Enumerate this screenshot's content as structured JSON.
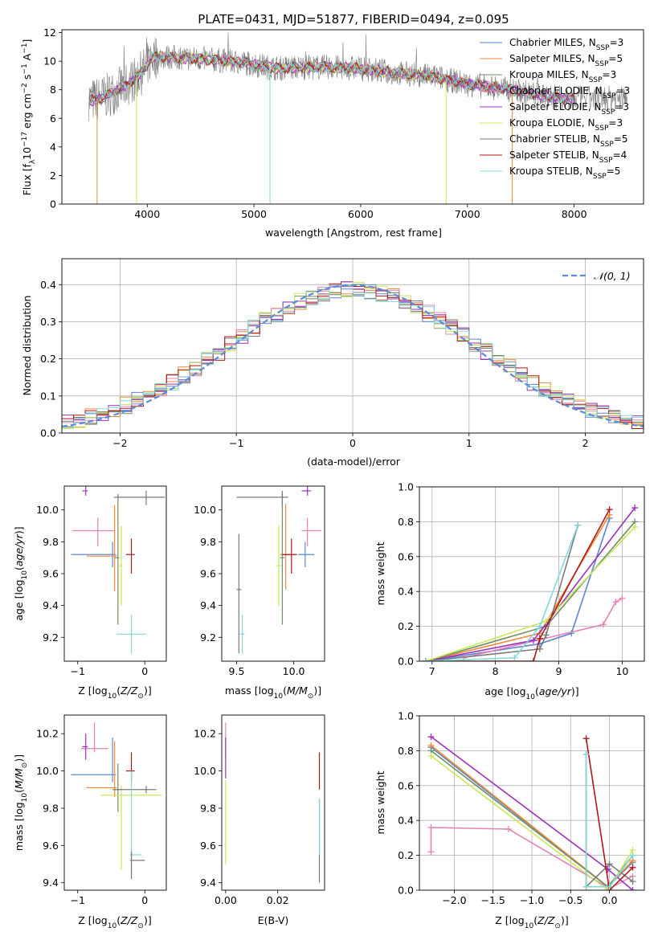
{
  "figure_title": "PLATE=0431, MJD=51877, FIBERID=0494, z=0.095",
  "colors": {
    "Chabrier MILES": "#5b86d4",
    "Salpeter MILES": "#f08a30",
    "Kroupa MILES": "#6f8e68",
    "Chabrier ELODIE": "#e583b4",
    "Salpeter ELODIE": "#9b30c0",
    "Kroupa ELODIE": "#c8e85a",
    "Chabrier STELIB": "#7a7a7a",
    "Salpeter STELIB": "#b01818",
    "Kroupa STELIB": "#80d8d8",
    "gaussian": "#5b8bd6"
  },
  "chart_data": [
    {
      "type": "line",
      "xlabel": "wavelength [Angstrom, rest frame]",
      "ylabel": "Flux [f_λ 10^-17 erg cm^-2 s^-1 A^-1]",
      "xlim": [
        3200,
        8650
      ],
      "ylim": [
        0,
        12.2
      ],
      "xticks": [
        4000,
        5000,
        6000,
        7000,
        8000
      ],
      "yticks": [
        0,
        2,
        4,
        6,
        8,
        10,
        12
      ],
      "grid": false,
      "legend_position": "right",
      "legend": [
        {
          "series": "Chabrier MILES",
          "label": "Chabrier MILES, N",
          "sub": "SSP",
          "tail": "=3"
        },
        {
          "series": "Salpeter MILES",
          "label": "Salpeter MILES, N",
          "sub": "SSP",
          "tail": "=5"
        },
        {
          "series": "Kroupa MILES",
          "label": "Kroupa MILES, N",
          "sub": "SSP",
          "tail": "=3"
        },
        {
          "series": "Chabrier ELODIE",
          "label": "Chabrier ELODIE, N",
          "sub": "SSP",
          "tail": "=3"
        },
        {
          "series": "Salpeter ELODIE",
          "label": "Salpeter ELODIE, N",
          "sub": "SSP",
          "tail": "=3"
        },
        {
          "series": "Kroupa ELODIE",
          "label": "Kroupa ELODIE, N",
          "sub": "SSP",
          "tail": "=3"
        },
        {
          "series": "Chabrier STELIB",
          "label": "Chabrier STELIB, N",
          "sub": "SSP",
          "tail": "=5"
        },
        {
          "series": "Salpeter STELIB",
          "label": "Salpeter STELIB, N",
          "sub": "SSP",
          "tail": "=4"
        },
        {
          "series": "Kroupa STELIB",
          "label": "Kroupa STELIB, N",
          "sub": "SSP",
          "tail": "=5"
        }
      ],
      "continuum": [
        [
          3460,
          7.2
        ],
        [
          3600,
          7.5
        ],
        [
          3800,
          8.3
        ],
        [
          3950,
          9.2
        ],
        [
          4050,
          10.3
        ],
        [
          4200,
          10.3
        ],
        [
          4400,
          10.2
        ],
        [
          4600,
          10.1
        ],
        [
          4900,
          9.9
        ],
        [
          5200,
          9.5
        ],
        [
          5600,
          9.6
        ],
        [
          6000,
          9.5
        ],
        [
          6300,
          9.2
        ],
        [
          6700,
          8.9
        ],
        [
          7000,
          8.4
        ],
        [
          7400,
          8.0
        ],
        [
          7700,
          7.6
        ],
        [
          7900,
          7.4
        ]
      ],
      "data_range": [
        3450,
        8500
      ]
    },
    {
      "type": "area",
      "xlabel": "(data-model)/error",
      "ylabel": "Normed distribution",
      "xlim": [
        -2.5,
        2.5
      ],
      "ylim": [
        0,
        0.47
      ],
      "xticks": [
        -2,
        -1,
        0,
        1,
        2
      ],
      "yticks": [
        0.0,
        0.1,
        0.2,
        0.3,
        0.4
      ],
      "grid": true,
      "bin_width": 0.1,
      "gaussian_label": "𝒩(0, 1)",
      "legend_position": "top-right"
    },
    {
      "type": "scatter",
      "xlabel": "Z [log10(Z/Z⊙)]",
      "ylabel": "age  [log10(age/yr)]",
      "xlim": [
        -1.2,
        0.32
      ],
      "ylim": [
        9.05,
        10.15
      ],
      "xticks": [
        -1,
        0
      ],
      "yticks": [
        9.2,
        9.4,
        9.6,
        9.8,
        10.0
      ],
      "points": [
        {
          "series": "Chabrier MILES",
          "x": -0.48,
          "xerr": [
            0.62,
            0.05
          ],
          "y": 9.72,
          "yerr": [
            0.08,
            0.08
          ]
        },
        {
          "series": "Salpeter MILES",
          "x": -0.45,
          "xerr": [
            0.42,
            0.03
          ],
          "y": 9.71,
          "yerr": [
            0.22,
            0.32
          ]
        },
        {
          "series": "Kroupa MILES",
          "x": -0.4,
          "xerr": [
            0.05,
            0.02
          ],
          "y": 9.7,
          "yerr": [
            0.42,
            0.4
          ]
        },
        {
          "series": "Chabrier ELODIE",
          "x": -0.7,
          "xerr": [
            0.38,
            0.25
          ],
          "y": 9.87,
          "yerr": [
            0.1,
            0.08
          ]
        },
        {
          "series": "Salpeter ELODIE",
          "x": -0.88,
          "xerr": [
            0.05,
            0.03
          ],
          "y": 10.12,
          "yerr": [
            0.03,
            0.03
          ]
        },
        {
          "series": "Kroupa ELODIE",
          "x": -0.35,
          "xerr": [
            0.05,
            0.02
          ],
          "y": 9.65,
          "yerr": [
            0.25,
            0.25
          ]
        },
        {
          "series": "Chabrier STELIB",
          "x": 0.02,
          "xerr": [
            0.48,
            0.28
          ],
          "y": 10.08,
          "yerr": [
            0.05,
            0.04
          ]
        },
        {
          "series": "Salpeter STELIB",
          "x": -0.2,
          "xerr": [
            0.08,
            0.05
          ],
          "y": 9.72,
          "yerr": [
            0.12,
            0.1
          ]
        },
        {
          "series": "Kroupa STELIB",
          "x": -0.2,
          "xerr": [
            0.22,
            0.22
          ],
          "y": 9.22,
          "yerr": [
            0.12,
            0.12
          ]
        }
      ]
    },
    {
      "type": "scatter",
      "xlabel": "mass [log10(M/M⊙)]",
      "ylabel": "",
      "xlim": [
        9.37,
        10.27
      ],
      "ylim": [
        9.05,
        10.15
      ],
      "xticks": [
        9.5,
        10.0
      ],
      "yticks": [
        9.2,
        9.4,
        9.6,
        9.8,
        10.0
      ],
      "points": [
        {
          "series": "Chabrier MILES",
          "x": 10.1,
          "xerr": [
            0.06,
            0.08
          ],
          "y": 9.72,
          "yerr": [
            0.08,
            0.08
          ]
        },
        {
          "series": "Salpeter MILES",
          "x": 9.93,
          "xerr": [
            0.05,
            0.05
          ],
          "y": 9.72,
          "yerr": [
            0.22,
            0.32
          ]
        },
        {
          "series": "Kroupa MILES",
          "x": 9.9,
          "xerr": [
            0.02,
            0.02
          ],
          "y": 9.7,
          "yerr": [
            0.42,
            0.4
          ]
        },
        {
          "series": "Chabrier ELODIE",
          "x": 10.12,
          "xerr": [
            0.05,
            0.12
          ],
          "y": 9.87,
          "yerr": [
            0.1,
            0.08
          ]
        },
        {
          "series": "Salpeter ELODIE",
          "x": 10.12,
          "xerr": [
            0.05,
            0.03
          ],
          "y": 10.12,
          "yerr": [
            0.03,
            0.03
          ]
        },
        {
          "series": "Kroupa ELODIE",
          "x": 9.87,
          "xerr": [
            0.02,
            0.02
          ],
          "y": 9.65,
          "yerr": [
            0.25,
            0.25
          ]
        },
        {
          "series": "Chabrier STELIB",
          "x": 9.9,
          "xerr": [
            0.4,
            0.05
          ],
          "y": 10.08,
          "yerr": [
            0.05,
            0.04
          ]
        },
        {
          "series": "Salpeter STELIB",
          "x": 9.98,
          "xerr": [
            0.08,
            0.05
          ],
          "y": 9.72,
          "yerr": [
            0.12,
            0.1
          ]
        },
        {
          "series": "Kroupa STELIB",
          "x": 9.55,
          "xerr": [
            0.02,
            0.02
          ],
          "y": 9.22,
          "yerr": [
            0.12,
            0.12
          ]
        },
        {
          "series": "Chabrier STELIB",
          "x": 9.52,
          "xerr": [
            0.02,
            0.02
          ],
          "y": 9.5,
          "yerr": [
            0.4,
            0.35
          ]
        }
      ]
    },
    {
      "type": "line",
      "xlabel": "age  [log10(age/yr)]",
      "ylabel": "mass weight",
      "xlim": [
        6.8,
        10.35
      ],
      "ylim": [
        0,
        1.0
      ],
      "xticks": [
        7,
        8,
        9,
        10
      ],
      "yticks": [
        0.0,
        0.2,
        0.4,
        0.6,
        0.8,
        1.0
      ],
      "grid": true,
      "series": [
        {
          "series": "Chabrier MILES",
          "x": [
            6.9,
            8.7,
            9.2,
            9.8
          ],
          "y": [
            0.0,
            0.1,
            0.16,
            0.82
          ]
        },
        {
          "series": "Salpeter MILES",
          "x": [
            6.9,
            8.7,
            9.8
          ],
          "y": [
            0.0,
            0.16,
            0.84
          ]
        },
        {
          "series": "Kroupa MILES",
          "x": [
            6.9,
            8.8,
            10.2
          ],
          "y": [
            0.0,
            0.2,
            0.8
          ]
        },
        {
          "series": "Chabrier ELODIE",
          "x": [
            7.5,
            9.7,
            9.9,
            10.0
          ],
          "y": [
            0.02,
            0.21,
            0.34,
            0.36
          ]
        },
        {
          "series": "Salpeter ELODIE",
          "x": [
            6.9,
            8.6,
            10.2
          ],
          "y": [
            0.0,
            0.12,
            0.88
          ]
        },
        {
          "series": "Kroupa ELODIE",
          "x": [
            6.9,
            8.8,
            10.2
          ],
          "y": [
            0.0,
            0.23,
            0.77
          ]
        },
        {
          "series": "Chabrier STELIB",
          "x": [
            6.9,
            8.7,
            8.8,
            9.3
          ],
          "y": [
            0.0,
            0.07,
            0.15,
            0.78
          ]
        },
        {
          "series": "Salpeter STELIB",
          "x": [
            6.9,
            8.6,
            8.7,
            9.8
          ],
          "y": [
            0.0,
            0.0,
            0.13,
            0.87
          ]
        },
        {
          "series": "Kroupa STELIB",
          "x": [
            6.9,
            8.3,
            8.7,
            9.3
          ],
          "y": [
            0.0,
            0.02,
            0.2,
            0.78
          ]
        }
      ]
    },
    {
      "type": "scatter",
      "xlabel": "Z [log10(Z/Z⊙)]",
      "ylabel": "mass [log10(M/M⊙)]",
      "xlim": [
        -1.2,
        0.32
      ],
      "ylim": [
        9.36,
        10.3
      ],
      "xticks": [
        -1,
        0
      ],
      "yticks": [
        9.4,
        9.6,
        9.8,
        10.0,
        10.2
      ],
      "points": [
        {
          "series": "Chabrier MILES",
          "x": -0.48,
          "xerr": [
            0.62,
            0.05
          ],
          "y": 9.98,
          "yerr": [
            0.04,
            0.2
          ]
        },
        {
          "series": "Salpeter MILES",
          "x": -0.45,
          "xerr": [
            0.42,
            0.03
          ],
          "y": 9.91,
          "yerr": [
            0.05,
            0.25
          ]
        },
        {
          "series": "Kroupa MILES",
          "x": -0.4,
          "xerr": [
            0.05,
            0.02
          ],
          "y": 9.9,
          "yerr": [
            0.12,
            0.14
          ]
        },
        {
          "series": "Chabrier ELODIE",
          "x": -0.75,
          "xerr": [
            0.2,
            0.2
          ],
          "y": 10.12,
          "yerr": [
            0.02,
            0.14
          ]
        },
        {
          "series": "Salpeter ELODIE",
          "x": -0.88,
          "xerr": [
            0.05,
            0.03
          ],
          "y": 10.13,
          "yerr": [
            0.07,
            0.07
          ]
        },
        {
          "series": "Kroupa ELODIE",
          "x": -0.35,
          "xerr": [
            0.3,
            0.6
          ],
          "y": 9.87,
          "yerr": [
            0.4,
            0.05
          ]
        },
        {
          "series": "Chabrier STELIB",
          "x": 0.02,
          "xerr": [
            0.5,
            0.15
          ],
          "y": 9.9,
          "yerr": [
            0.02,
            0.02
          ]
        },
        {
          "series": "Salpeter STELIB",
          "x": -0.2,
          "xerr": [
            0.08,
            0.05
          ],
          "y": 10.0,
          "yerr": [
            0.06,
            0.1
          ]
        },
        {
          "series": "Kroupa STELIB",
          "x": -0.2,
          "xerr": [
            0.02,
            0.15
          ],
          "y": 9.55,
          "yerr": [
            0.1,
            0.45
          ]
        },
        {
          "series": "Chabrier STELIB",
          "x": -0.2,
          "xerr": [
            0.02,
            0.2
          ],
          "y": 9.52,
          "yerr": [
            0.1,
            0.05
          ]
        }
      ]
    },
    {
      "type": "scatter",
      "xlabel": "E(B-V)",
      "ylabel": "",
      "xlim": [
        -0.0015,
        0.038
      ],
      "ylim": [
        9.36,
        10.3
      ],
      "xticks": [
        0.0,
        0.02
      ],
      "yticks": [
        9.4,
        9.6,
        9.8,
        10.0,
        10.2
      ],
      "points": [
        {
          "series": "Chabrier ELODIE",
          "x": 0.0,
          "y": 10.12,
          "yerr": [
            0.05,
            0.14
          ]
        },
        {
          "series": "Salpeter ELODIE",
          "x": 0.0,
          "y": 10.1,
          "yerr": [
            0.14,
            0.08
          ]
        },
        {
          "series": "Kroupa ELODIE",
          "x": 0.0,
          "y": 9.85,
          "yerr": [
            0.35,
            0.1
          ]
        },
        {
          "series": "Chabrier STELIB",
          "x": 0.036,
          "y": 9.8,
          "yerr": [
            0.4,
            0.05
          ]
        },
        {
          "series": "Salpeter STELIB",
          "x": 0.036,
          "y": 10.0,
          "yerr": [
            0.1,
            0.1
          ]
        },
        {
          "series": "Kroupa STELIB",
          "x": 0.036,
          "y": 9.7,
          "yerr": [
            0.15,
            0.15
          ]
        }
      ]
    },
    {
      "type": "line",
      "xlabel": "Z [log10(Z/Z⊙)]",
      "ylabel": "mass weight",
      "xlim": [
        -2.45,
        0.45
      ],
      "ylim": [
        0,
        1.0
      ],
      "xticks": [
        -2.0,
        -1.5,
        -1.0,
        -0.5,
        0.0
      ],
      "yticks": [
        0.0,
        0.2,
        0.4,
        0.6,
        0.8,
        1.0
      ],
      "grid": true,
      "series": [
        {
          "series": "Chabrier MILES",
          "x": [
            -2.3,
            -0.02,
            0.3
          ],
          "y": [
            0.82,
            0.02,
            0.16
          ]
        },
        {
          "series": "Salpeter MILES",
          "x": [
            -2.3,
            -0.02,
            0.3
          ],
          "y": [
            0.83,
            0.02,
            0.17
          ]
        },
        {
          "series": "Kroupa MILES",
          "x": [
            -2.3,
            -0.02,
            0.3
          ],
          "y": [
            0.8,
            0.02,
            0.2
          ]
        },
        {
          "series": "Chabrier ELODIE",
          "x": [
            -2.3,
            -2.3,
            -1.3,
            0.0,
            0.3
          ],
          "y": [
            0.22,
            0.36,
            0.35,
            0.01,
            0.08
          ]
        },
        {
          "series": "Salpeter ELODIE",
          "x": [
            -2.3,
            -0.02,
            0.3
          ],
          "y": [
            0.88,
            0.12,
            0.0
          ]
        },
        {
          "series": "Kroupa ELODIE",
          "x": [
            -2.3,
            -0.02,
            0.3
          ],
          "y": [
            0.77,
            0.0,
            0.23
          ]
        },
        {
          "series": "Chabrier STELIB",
          "x": [
            -0.3,
            -0.3,
            0.0,
            0.3
          ],
          "y": [
            0.78,
            0.02,
            0.15,
            0.05
          ]
        },
        {
          "series": "Salpeter STELIB",
          "x": [
            -0.3,
            0.0,
            0.3
          ],
          "y": [
            0.87,
            0.0,
            0.13
          ]
        },
        {
          "series": "Kroupa STELIB",
          "x": [
            -0.3,
            -0.3,
            0.0,
            0.3
          ],
          "y": [
            0.78,
            0.02,
            0.02,
            0.2
          ]
        }
      ]
    }
  ]
}
